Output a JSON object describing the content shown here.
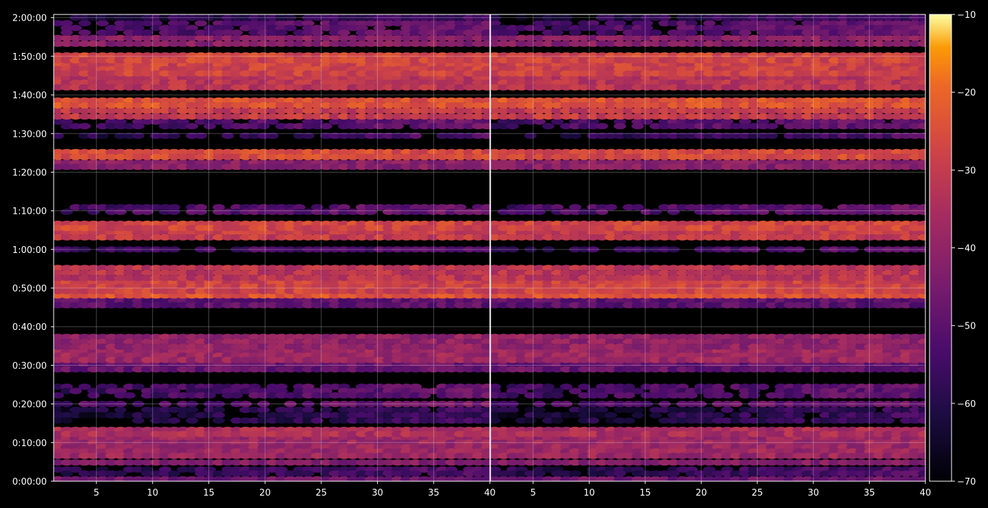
{
  "chart_data": {
    "type": "heatmap",
    "title": "",
    "xlabel": "",
    "ylabel": "",
    "grid": true,
    "panels": [
      {
        "name": "left",
        "xlim": [
          1.2,
          40.0
        ]
      },
      {
        "name": "right",
        "xlim": [
          1.2,
          40.0
        ]
      }
    ],
    "x_ticks": [
      "5",
      "10",
      "15",
      "20",
      "25",
      "30",
      "35",
      "40"
    ],
    "x_tick_values": [
      5,
      10,
      15,
      20,
      25,
      30,
      35,
      40
    ],
    "y_ticks": [
      "0:00:00",
      "0:10:00",
      "0:20:00",
      "0:30:00",
      "0:40:00",
      "0:50:00",
      "1:00:00",
      "1:10:00",
      "1:20:00",
      "1:30:00",
      "1:40:00",
      "1:50:00",
      "2:00:00"
    ],
    "y_tick_seconds": [
      0,
      600,
      1200,
      1800,
      2400,
      3000,
      3600,
      4200,
      4800,
      5400,
      6000,
      6600,
      7200
    ],
    "ylim_seconds": [
      0,
      7250
    ],
    "colorbar": {
      "colormap": "inferno",
      "range": [
        -70,
        -10
      ],
      "ticks": [
        "−10",
        "−20",
        "−30",
        "−40",
        "−50",
        "−60",
        "−70"
      ],
      "tick_values": [
        -10,
        -20,
        -30,
        -40,
        -50,
        -60,
        -70
      ]
    },
    "bands": [
      {
        "t_start": 0,
        "t_end": 60,
        "level": -47
      },
      {
        "t_start": 90,
        "t_end": 210,
        "level": -60
      },
      {
        "t_start": 240,
        "t_end": 340,
        "level": -43
      },
      {
        "t_start": 360,
        "t_end": 700,
        "level": -38
      },
      {
        "t_start": 700,
        "t_end": 830,
        "level": -35
      },
      {
        "t_start": 900,
        "t_end": 1150,
        "level": -63
      },
      {
        "t_start": 1150,
        "t_end": 1250,
        "level": -53
      },
      {
        "t_start": 1300,
        "t_end": 1500,
        "level": -56
      },
      {
        "t_start": 1700,
        "t_end": 1850,
        "level": -48
      },
      {
        "t_start": 1850,
        "t_end": 2050,
        "level": -38
      },
      {
        "t_start": 2050,
        "t_end": 2280,
        "level": -40
      },
      {
        "t_start": 2700,
        "t_end": 2900,
        "level": -50
      },
      {
        "t_start": 2850,
        "t_end": 2920,
        "level": -24
      },
      {
        "t_start": 2920,
        "t_end": 3120,
        "level": -28
      },
      {
        "t_start": 3120,
        "t_end": 3350,
        "level": -32
      },
      {
        "t_start": 3550,
        "t_end": 3650,
        "level": -58
      },
      {
        "t_start": 3750,
        "t_end": 3900,
        "level": -30
      },
      {
        "t_start": 3900,
        "t_end": 4030,
        "level": -27
      },
      {
        "t_start": 4150,
        "t_end": 4290,
        "level": -55
      },
      {
        "t_start": 4850,
        "t_end": 4980,
        "level": -42
      },
      {
        "t_start": 5000,
        "t_end": 5150,
        "level": -26
      },
      {
        "t_start": 5310,
        "t_end": 5420,
        "level": -60
      },
      {
        "t_start": 5480,
        "t_end": 5620,
        "level": -55
      },
      {
        "t_start": 5620,
        "t_end": 5800,
        "level": -30
      },
      {
        "t_start": 5800,
        "t_end": 5950,
        "level": -24
      },
      {
        "t_start": 6080,
        "t_end": 6300,
        "level": -32
      },
      {
        "t_start": 6300,
        "t_end": 6500,
        "level": -28
      },
      {
        "t_start": 6500,
        "t_end": 6650,
        "level": -27
      },
      {
        "t_start": 6750,
        "t_end": 6930,
        "level": -42
      },
      {
        "t_start": 6930,
        "t_end": 7150,
        "level": -55
      },
      {
        "t_start": 7150,
        "t_end": 7250,
        "level": -62
      }
    ]
  }
}
